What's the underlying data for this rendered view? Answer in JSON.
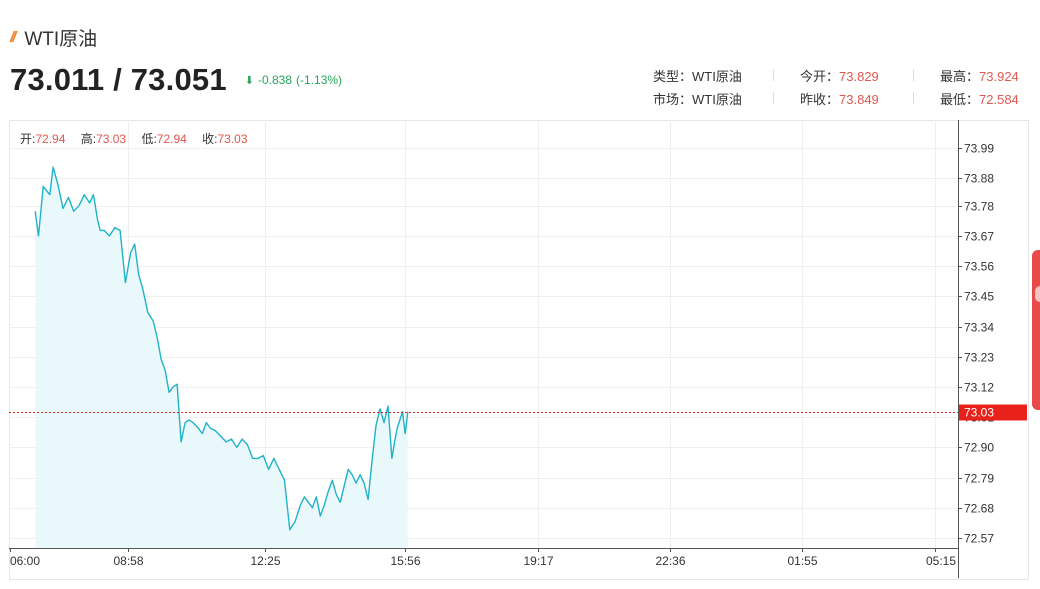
{
  "header": {
    "title": "WTI原油",
    "bid_ask": "73.011 / 73.051",
    "change": "-0.838",
    "change_pct": "(-1.13%)",
    "change_color": "#26a65b",
    "accent": "#f07e24"
  },
  "stats": {
    "type_label": "类型：",
    "type_value": "WTI原油",
    "market_label": "市场：",
    "market_value": "WTI原油",
    "open_label": "今开：",
    "open_value": "73.829",
    "prev_close_label": "昨收：",
    "prev_close_value": "73.849",
    "high_label": "最高：",
    "high_value": "73.924",
    "low_label": "最低：",
    "low_value": "72.584"
  },
  "ohlc": {
    "open_label": "开:",
    "open": "72.94",
    "high_label": "高:",
    "high": "73.03",
    "low_label": "低:",
    "low": "72.94",
    "close_label": "收:",
    "close": "73.03"
  },
  "chart_data": {
    "type": "area",
    "x_labels": [
      "06:00",
      "08:58",
      "12:25",
      "15:56",
      "19:17",
      "22:36",
      "01:55",
      "05:15"
    ],
    "y_ticks": [
      "73.99",
      "73.88",
      "73.78",
      "73.67",
      "73.56",
      "73.45",
      "73.34",
      "73.23",
      "73.12",
      "73.01",
      "72.90",
      "72.79",
      "72.68",
      "72.57"
    ],
    "ylim": [
      72.54,
      74.04
    ],
    "current_price": 73.03,
    "current_price_label": "73.03",
    "line_color": "#1fb3c9",
    "fill_color": "#e9f8fa",
    "marker_color": "#e8221b",
    "series": [
      {
        "x": [
          "06:38",
          "06:43",
          "06:50",
          "07:00",
          "07:05",
          "07:12",
          "07:20",
          "07:28",
          "07:36",
          "07:44",
          "07:52",
          "08:00",
          "08:06",
          "08:12",
          "08:16",
          "08:22",
          "08:30",
          "08:38",
          "08:46",
          "08:54",
          "09:02",
          "09:08",
          "09:14",
          "09:20",
          "09:28",
          "09:36",
          "09:42",
          "09:48",
          "09:54",
          "10:00",
          "10:06",
          "10:12",
          "10:18",
          "10:24",
          "10:30",
          "10:36",
          "10:40",
          "10:44",
          "10:50",
          "10:56",
          "11:02",
          "11:10",
          "11:18",
          "11:26",
          "11:34",
          "11:42",
          "11:50",
          "11:58",
          "12:06",
          "12:14",
          "12:22",
          "12:30",
          "12:38",
          "12:46",
          "12:54",
          "13:02",
          "13:10",
          "13:18",
          "13:24",
          "13:30",
          "13:36",
          "13:42",
          "13:48",
          "13:54",
          "14:00",
          "14:06",
          "14:12",
          "14:18",
          "14:24",
          "14:30",
          "14:36",
          "14:42",
          "14:48",
          "14:54",
          "15:00",
          "15:06",
          "15:12",
          "15:18",
          "15:24",
          "15:30",
          "15:36",
          "15:40",
          "15:44",
          "15:48",
          "15:52",
          "15:56",
          "16:00"
        ],
        "y": [
          73.76,
          73.67,
          73.85,
          73.82,
          73.92,
          73.86,
          73.77,
          73.81,
          73.76,
          73.78,
          73.82,
          73.79,
          73.82,
          73.73,
          73.69,
          73.69,
          73.67,
          73.7,
          73.69,
          73.5,
          73.61,
          73.64,
          73.53,
          73.48,
          73.39,
          73.36,
          73.3,
          73.22,
          73.18,
          73.1,
          73.12,
          73.13,
          72.92,
          72.99,
          73.0,
          72.99,
          72.98,
          72.97,
          72.95,
          72.99,
          72.97,
          72.96,
          72.94,
          72.92,
          72.93,
          72.9,
          72.93,
          72.91,
          72.86,
          72.86,
          72.87,
          72.82,
          72.86,
          72.82,
          72.78,
          72.6,
          72.63,
          72.69,
          72.72,
          72.7,
          72.68,
          72.72,
          72.65,
          72.69,
          72.74,
          72.78,
          72.73,
          72.7,
          72.76,
          72.82,
          72.8,
          72.77,
          72.8,
          72.77,
          72.71,
          72.85,
          72.98,
          73.04,
          72.99,
          73.05,
          72.86,
          72.92,
          72.97,
          73.0,
          73.03,
          72.95,
          73.03
        ]
      }
    ]
  }
}
